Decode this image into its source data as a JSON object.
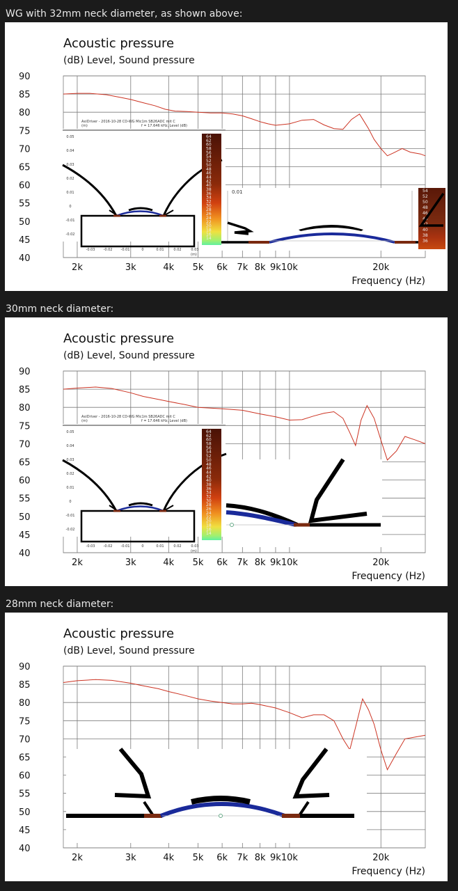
{
  "captions": [
    "WG with 32mm neck diameter, as shown above:",
    "30mm neck diameter:",
    "28mm neck diameter:"
  ],
  "colors": {
    "page_background": "#1b1b1b",
    "caption_text": "#e8e8e8",
    "curve": "#cc3322",
    "grid": "#7a7a7a",
    "dome_blue": "#1a2a9a",
    "neck_brown": "#7a2a10"
  },
  "inset": {
    "title": "AxiDriver - 2016-10-28 CD-WG Mic1m SB26ADC mit C",
    "subtitle": "f = 17.646 kHz, Level (dB)",
    "unit_x": "(m)",
    "unit_y": "(m)",
    "y_ticks": [
      "0.05",
      "0.04",
      "0.03",
      "0.02",
      "0.01",
      "0",
      "-0.01",
      "-0.02"
    ],
    "x_ticks": [
      "-0.03",
      "-0.02",
      "-0.01",
      "0",
      "0.01",
      "0.02",
      "0.03"
    ],
    "colorbar_ticks": [
      "64",
      "62",
      "60",
      "58",
      "56",
      "54",
      "52",
      "50",
      "48",
      "46",
      "44",
      "42",
      "40",
      "38",
      "36",
      "34",
      "32",
      "30",
      "28",
      "26",
      "24",
      "22",
      "20",
      "18",
      "16",
      "14"
    ],
    "zoom_label": "0.01",
    "zoom_colorbar_ticks": [
      "54",
      "52",
      "50",
      "48",
      "46",
      "44",
      "42",
      "40",
      "38",
      "36"
    ]
  },
  "chart_data": [
    {
      "type": "line",
      "title": "Acoustic pressure",
      "subtitle": "(dB)  Level, Sound pressure",
      "xlabel": "Frequency  (Hz)",
      "ylabel": "",
      "x_scale": "log",
      "xlim": [
        1800,
        28000
      ],
      "ylim": [
        40,
        90
      ],
      "y_ticks": [
        "90",
        "85",
        "80",
        "75",
        "70",
        "65",
        "60",
        "55",
        "50",
        "45",
        "40"
      ],
      "x_ticks": [
        {
          "value": 2000,
          "label": "2k"
        },
        {
          "value": 3000,
          "label": "3k"
        },
        {
          "value": 4000,
          "label": "4k"
        },
        {
          "value": 5000,
          "label": "5k"
        },
        {
          "value": 6000,
          "label": "6k"
        },
        {
          "value": 7000,
          "label": "7k"
        },
        {
          "value": 8000,
          "label": "8k"
        },
        {
          "value": 9000,
          "label": "9k"
        },
        {
          "value": 10000,
          "label": "10k"
        },
        {
          "value": 20000,
          "label": "20k"
        }
      ],
      "grid": true,
      "series": [
        {
          "x": [
            1800,
            2000,
            2200,
            2500,
            2800,
            3000,
            3300,
            3600,
            3900,
            4200,
            4600,
            5000,
            5500,
            6000,
            6500,
            7000,
            7500,
            8000,
            8500,
            9000,
            10000,
            11000,
            12000,
            13000,
            14000,
            15000,
            16000,
            17000,
            17600,
            18200,
            19000,
            20000,
            21000,
            22000,
            23500,
            25000,
            27000,
            28000
          ],
          "y": [
            85,
            85.2,
            85.2,
            84.8,
            84,
            83.5,
            82.6,
            81.8,
            80.8,
            80.3,
            80.2,
            80,
            79.8,
            79.8,
            79.5,
            79,
            78.2,
            77.4,
            76.8,
            76.4,
            76.8,
            77.8,
            78,
            76.5,
            75.5,
            75.3,
            78,
            79.5,
            77.5,
            75.5,
            72.5,
            70,
            68,
            68.8,
            70,
            69,
            68.5,
            68
          ]
        }
      ]
    },
    {
      "type": "line",
      "title": "Acoustic pressure",
      "subtitle": "(dB)  Level, Sound pressure",
      "xlabel": "Frequency  (Hz)",
      "ylabel": "",
      "x_scale": "log",
      "xlim": [
        1800,
        28000
      ],
      "ylim": [
        40,
        90
      ],
      "y_ticks": [
        "90",
        "85",
        "80",
        "75",
        "70",
        "65",
        "60",
        "55",
        "50",
        "45",
        "40"
      ],
      "x_ticks": [
        {
          "value": 2000,
          "label": "2k"
        },
        {
          "value": 3000,
          "label": "3k"
        },
        {
          "value": 4000,
          "label": "4k"
        },
        {
          "value": 5000,
          "label": "5k"
        },
        {
          "value": 6000,
          "label": "6k"
        },
        {
          "value": 7000,
          "label": "7k"
        },
        {
          "value": 8000,
          "label": "8k"
        },
        {
          "value": 9000,
          "label": "9k"
        },
        {
          "value": 10000,
          "label": "10k"
        },
        {
          "value": 20000,
          "label": "20k"
        }
      ],
      "grid": true,
      "series": [
        {
          "x": [
            1800,
            2000,
            2300,
            2600,
            3000,
            3300,
            3700,
            4000,
            4500,
            5000,
            5500,
            6000,
            7000,
            8000,
            9000,
            10000,
            11000,
            12000,
            13000,
            14000,
            15000,
            15800,
            16500,
            17200,
            18000,
            19000,
            20000,
            21000,
            22500,
            24000,
            26000,
            28000
          ],
          "y": [
            85,
            85.3,
            85.6,
            85.2,
            84,
            83,
            82.2,
            81.6,
            80.8,
            80,
            79.8,
            79.6,
            79.2,
            78.2,
            77.4,
            76.5,
            76.6,
            77.6,
            78.4,
            78.8,
            77,
            73,
            69.5,
            76.5,
            80.5,
            77,
            71,
            65.5,
            68,
            72,
            71,
            70
          ]
        }
      ]
    },
    {
      "type": "line",
      "title": "Acoustic pressure",
      "subtitle": "(dB)  Level, Sound pressure",
      "xlabel": "Frequency  (Hz)",
      "ylabel": "",
      "x_scale": "log",
      "xlim": [
        1800,
        28000
      ],
      "ylim": [
        40,
        90
      ],
      "y_ticks": [
        "90",
        "85",
        "80",
        "75",
        "70",
        "65",
        "60",
        "55",
        "50",
        "45",
        "40"
      ],
      "x_ticks": [
        {
          "value": 2000,
          "label": "2k"
        },
        {
          "value": 3000,
          "label": "3k"
        },
        {
          "value": 4000,
          "label": "4k"
        },
        {
          "value": 5000,
          "label": "5k"
        },
        {
          "value": 6000,
          "label": "6k"
        },
        {
          "value": 7000,
          "label": "7k"
        },
        {
          "value": 8000,
          "label": "8k"
        },
        {
          "value": 9000,
          "label": "9k"
        },
        {
          "value": 10000,
          "label": "10k"
        },
        {
          "value": 20000,
          "label": "20k"
        }
      ],
      "grid": true,
      "series": [
        {
          "x": [
            1800,
            2000,
            2300,
            2600,
            3000,
            3300,
            3700,
            4000,
            4500,
            5000,
            5500,
            6000,
            6500,
            7000,
            7500,
            8000,
            9000,
            10000,
            11000,
            12000,
            13000,
            14000,
            15000,
            15800,
            16600,
            17400,
            18200,
            19000,
            20000,
            21000,
            22500,
            24000,
            26000,
            28000
          ],
          "y": [
            85.5,
            86,
            86.3,
            86.1,
            85.3,
            84.6,
            83.8,
            83,
            82,
            81,
            80.4,
            80,
            79.6,
            79.6,
            79.8,
            79.4,
            78.5,
            77.2,
            75.8,
            76.6,
            76.6,
            75,
            70,
            67,
            74,
            81,
            78,
            74,
            67,
            61.5,
            66,
            70,
            70.5,
            71
          ]
        }
      ]
    }
  ]
}
